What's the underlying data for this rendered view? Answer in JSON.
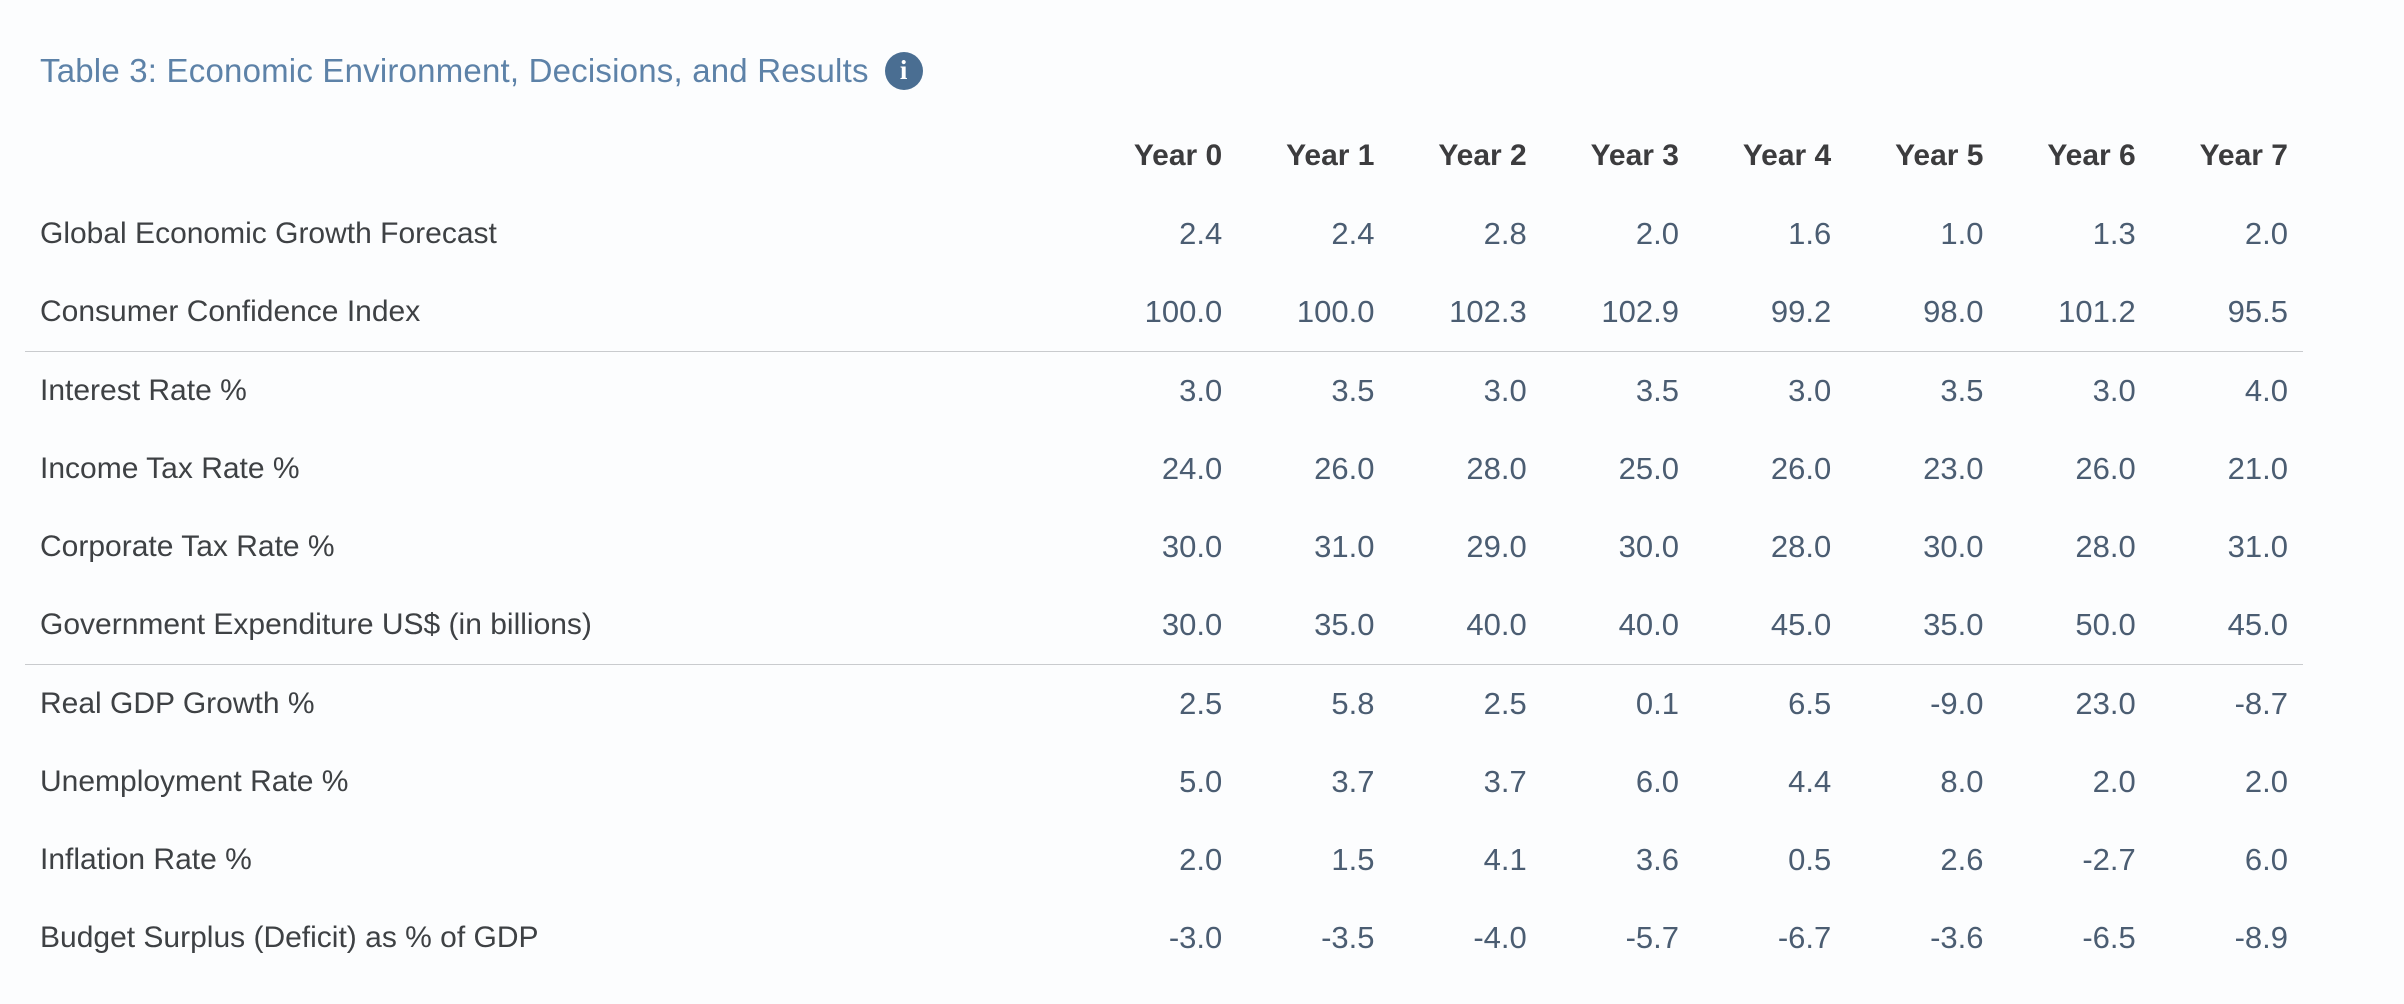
{
  "header": {
    "title": "Table 3: Economic Environment, Decisions, and Results",
    "info_icon": {
      "name": "info-circle-icon",
      "glyph": "i"
    }
  },
  "colors": {
    "background": "#fcfdfe",
    "title_text": "#5d82a8",
    "info_icon_bg": "#4a6e92",
    "column_header_text": "#3c3c3e",
    "row_label_text": "#3e4144",
    "value_text": "#4b5d72",
    "section_divider": "#c9cbce"
  },
  "table": {
    "columns": [
      "Year 0",
      "Year 1",
      "Year 2",
      "Year 3",
      "Year 4",
      "Year 5",
      "Year 6",
      "Year 7"
    ],
    "sections": [
      {
        "name": "economic-environment",
        "rows": [
          {
            "label": "Global Economic Growth Forecast",
            "values": [
              "2.4",
              "2.4",
              "2.8",
              "2.0",
              "1.6",
              "1.0",
              "1.3",
              "2.0"
            ]
          },
          {
            "label": "Consumer Confidence Index",
            "values": [
              "100.0",
              "100.0",
              "102.3",
              "102.9",
              "99.2",
              "98.0",
              "101.2",
              "95.5"
            ]
          }
        ]
      },
      {
        "name": "decisions",
        "rows": [
          {
            "label": "Interest Rate %",
            "values": [
              "3.0",
              "3.5",
              "3.0",
              "3.5",
              "3.0",
              "3.5",
              "3.0",
              "4.0"
            ]
          },
          {
            "label": "Income Tax Rate %",
            "values": [
              "24.0",
              "26.0",
              "28.0",
              "25.0",
              "26.0",
              "23.0",
              "26.0",
              "21.0"
            ]
          },
          {
            "label": "Corporate Tax Rate %",
            "values": [
              "30.0",
              "31.0",
              "29.0",
              "30.0",
              "28.0",
              "30.0",
              "28.0",
              "31.0"
            ]
          },
          {
            "label": "Government Expenditure US$ (in billions)",
            "values": [
              "30.0",
              "35.0",
              "40.0",
              "40.0",
              "45.0",
              "35.0",
              "50.0",
              "45.0"
            ]
          }
        ]
      },
      {
        "name": "results",
        "rows": [
          {
            "label": "Real GDP Growth %",
            "values": [
              "2.5",
              "5.8",
              "2.5",
              "0.1",
              "6.5",
              "-9.0",
              "23.0",
              "-8.7"
            ]
          },
          {
            "label": "Unemployment Rate %",
            "values": [
              "5.0",
              "3.7",
              "3.7",
              "6.0",
              "4.4",
              "8.0",
              "2.0",
              "2.0"
            ]
          },
          {
            "label": "Inflation Rate %",
            "values": [
              "2.0",
              "1.5",
              "4.1",
              "3.6",
              "0.5",
              "2.6",
              "-2.7",
              "6.0"
            ]
          },
          {
            "label": "Budget Surplus (Deficit) as % of GDP",
            "values": [
              "-3.0",
              "-3.5",
              "-4.0",
              "-5.7",
              "-6.7",
              "-3.6",
              "-6.5",
              "-8.9"
            ]
          }
        ]
      }
    ]
  }
}
